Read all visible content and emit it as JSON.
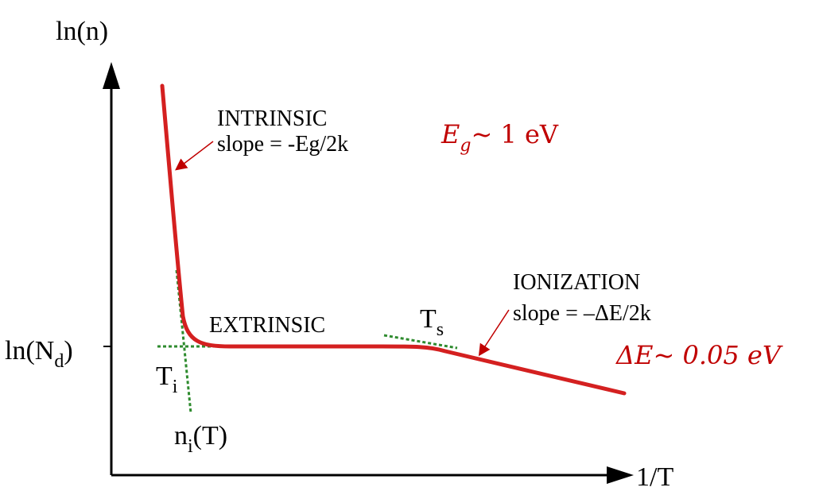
{
  "axes": {
    "y_label": "ln(n)",
    "x_label": "1/T",
    "y_tick_main": "ln(N",
    "y_tick_sub": "d",
    "y_tick_close": ")"
  },
  "regions": {
    "intrinsic_title": "INTRINSIC",
    "intrinsic_slope": "slope = -Eg/2k",
    "extrinsic_title": "EXTRINSIC",
    "ionization_title": "IONIZATION",
    "ionization_slope": "slope = –ΔE/2k"
  },
  "markers": {
    "ti_main": "T",
    "ti_sub": "i",
    "ts_main": "T",
    "ts_sub": "s",
    "ni_main": "n",
    "ni_sub": "i",
    "ni_tail": "(T)"
  },
  "annotations": {
    "eg_symbol": "E",
    "eg_sub": "g",
    "eg_rest": "~ 1 eV",
    "de_text": "ΔE~ 0.05 eV"
  },
  "colors": {
    "curve": "#d42020",
    "tangent": "#2e8b2e",
    "accent_text": "#c00000",
    "axis": "#000000"
  }
}
